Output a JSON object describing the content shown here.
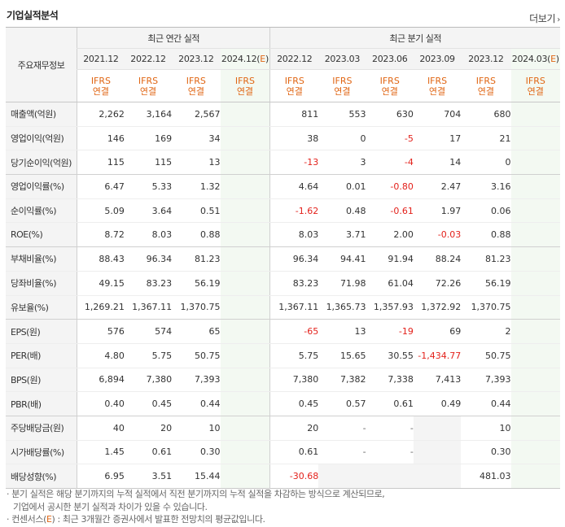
{
  "title": "기업실적분석",
  "more_label": "더보기",
  "more_arrow": "›",
  "header": {
    "row_label": "주요재무정보",
    "annual_title": "최근 연간 실적",
    "quarter_title": "최근 분기 실적",
    "annual_periods": [
      "2021.12",
      "2022.12",
      "2023.12",
      "2024.12(E)"
    ],
    "quarter_periods": [
      "2022.12",
      "2023.03",
      "2023.06",
      "2023.09",
      "2023.12",
      "2024.03(E)"
    ],
    "standard_top": "IFRS",
    "standard_bottom": "연결"
  },
  "rows": [
    {
      "label": "매출액(억원)",
      "annual": [
        "2,262",
        "3,164",
        "2,567",
        ""
      ],
      "quarter": [
        "811",
        "553",
        "630",
        "704",
        "680",
        ""
      ]
    },
    {
      "label": "영업이익(억원)",
      "annual": [
        "146",
        "169",
        "34",
        ""
      ],
      "quarter": [
        "38",
        "0",
        "-5",
        "17",
        "21",
        ""
      ]
    },
    {
      "label": "당기순이익(억원)",
      "annual": [
        "115",
        "115",
        "13",
        ""
      ],
      "quarter": [
        "-13",
        "3",
        "-4",
        "14",
        "0",
        ""
      ]
    },
    {
      "label": "영업이익률(%)",
      "annual": [
        "6.47",
        "5.33",
        "1.32",
        ""
      ],
      "quarter": [
        "4.64",
        "0.01",
        "-0.80",
        "2.47",
        "3.16",
        ""
      ]
    },
    {
      "label": "순이익률(%)",
      "annual": [
        "5.09",
        "3.64",
        "0.51",
        ""
      ],
      "quarter": [
        "-1.62",
        "0.48",
        "-0.61",
        "1.97",
        "0.06",
        ""
      ]
    },
    {
      "label": "ROE(%)",
      "annual": [
        "8.72",
        "8.03",
        "0.88",
        ""
      ],
      "quarter": [
        "8.03",
        "3.71",
        "2.00",
        "-0.03",
        "0.88",
        ""
      ]
    },
    {
      "label": "부채비율(%)",
      "annual": [
        "88.43",
        "96.34",
        "81.23",
        ""
      ],
      "quarter": [
        "96.34",
        "94.41",
        "91.94",
        "88.24",
        "81.23",
        ""
      ]
    },
    {
      "label": "당좌비율(%)",
      "annual": [
        "49.15",
        "83.23",
        "56.19",
        ""
      ],
      "quarter": [
        "83.23",
        "71.98",
        "61.04",
        "72.26",
        "56.19",
        ""
      ]
    },
    {
      "label": "유보율(%)",
      "annual": [
        "1,269.21",
        "1,367.11",
        "1,370.75",
        ""
      ],
      "quarter": [
        "1,367.11",
        "1,365.73",
        "1,357.93",
        "1,372.92",
        "1,370.75",
        ""
      ]
    },
    {
      "label": "EPS(원)",
      "annual": [
        "576",
        "574",
        "65",
        ""
      ],
      "quarter": [
        "-65",
        "13",
        "-19",
        "69",
        "2",
        ""
      ]
    },
    {
      "label": "PER(배)",
      "annual": [
        "4.80",
        "5.75",
        "50.75",
        ""
      ],
      "quarter": [
        "5.75",
        "15.65",
        "30.55",
        "-1,434.77",
        "50.75",
        ""
      ]
    },
    {
      "label": "BPS(원)",
      "annual": [
        "6,894",
        "7,380",
        "7,393",
        ""
      ],
      "quarter": [
        "7,380",
        "7,382",
        "7,338",
        "7,413",
        "7,393",
        ""
      ]
    },
    {
      "label": "PBR(배)",
      "annual": [
        "0.40",
        "0.45",
        "0.44",
        ""
      ],
      "quarter": [
        "0.45",
        "0.57",
        "0.61",
        "0.49",
        "0.44",
        ""
      ]
    },
    {
      "label": "주당배당금(원)",
      "annual": [
        "40",
        "20",
        "10",
        ""
      ],
      "quarter": [
        "20",
        "-",
        "-",
        "",
        "10",
        ""
      ]
    },
    {
      "label": "시가배당률(%)",
      "annual": [
        "1.45",
        "0.61",
        "0.30",
        ""
      ],
      "quarter": [
        "0.61",
        "-",
        "-",
        "",
        "0.30",
        ""
      ]
    },
    {
      "label": "배당성향(%)",
      "annual": [
        "6.95",
        "3.51",
        "15.44",
        ""
      ],
      "quarter": [
        "-30.68",
        "",
        "",
        "",
        "481.03",
        ""
      ]
    }
  ],
  "notes": {
    "line1": "· 분기 실적은 해당 분기까지의 누적 실적에서 직전 분기까지의 누적 실적을 차감하는 방식으로 계산되므로,",
    "line2": "기업에서 공시한 분기 실적과 차이가 있을 수 있습니다.",
    "line3_prefix": "· 컨센서스(",
    "line3_e": "E",
    "line3_suffix": ") : 최근 3개월간 증권사에서 발표한 전망치의 평균값입니다."
  },
  "colors": {
    "accent_orange": "#e06614",
    "negative_red": "#e3211b",
    "estimate_bg": "#f3f9f2",
    "header_bg": "#f4f4f4"
  }
}
